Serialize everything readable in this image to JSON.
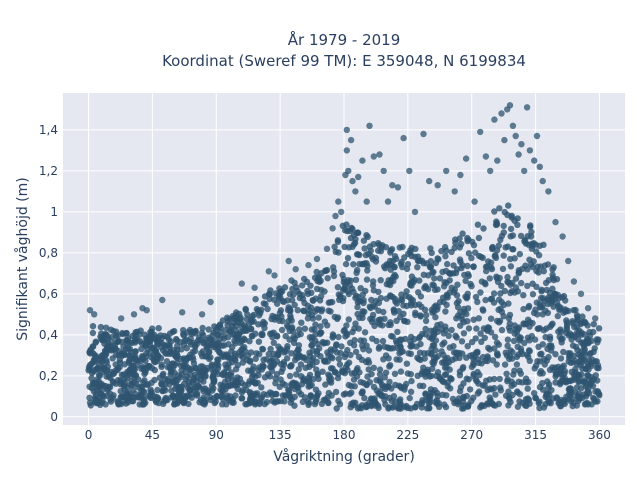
{
  "chart_data": {
    "type": "scatter",
    "title_line1": "År 1979 - 2019",
    "title_line2": "Koordinat (Sweref 99 TM): E 359048, N 6199834",
    "xlabel": "Vågriktning (grader)",
    "ylabel": "Signifikant våghöjd (m)",
    "xlim": [
      -18,
      378
    ],
    "ylim": [
      -0.04,
      1.58
    ],
    "xticks": [
      0,
      45,
      90,
      135,
      180,
      225,
      270,
      315,
      360
    ],
    "xtick_labels": [
      "0",
      "45",
      "90",
      "135",
      "180",
      "225",
      "270",
      "315",
      "360"
    ],
    "yticks": [
      0,
      0.2,
      0.4,
      0.6,
      0.8,
      1.0,
      1.2,
      1.4
    ],
    "ytick_labels": [
      "0",
      "0,2",
      "0,4",
      "0,6",
      "0,8",
      "1",
      "1,2",
      "1,4"
    ],
    "grid": true,
    "marker_color": "#2e5470",
    "plot_bg": "#e5e8f0",
    "envelope": {
      "direction": [
        0,
        10,
        20,
        30,
        45,
        60,
        75,
        90,
        105,
        120,
        135,
        150,
        165,
        175,
        180,
        190,
        200,
        210,
        225,
        240,
        255,
        270,
        285,
        295,
        300,
        310,
        320,
        330,
        340,
        350,
        360
      ],
      "upper_wave_height": [
        0.48,
        0.44,
        0.42,
        0.42,
        0.44,
        0.42,
        0.43,
        0.45,
        0.52,
        0.6,
        0.65,
        0.68,
        0.72,
        0.9,
        0.95,
        0.9,
        0.88,
        0.85,
        0.83,
        0.82,
        0.86,
        0.92,
        1.0,
        1.05,
        1.0,
        0.95,
        0.85,
        0.7,
        0.55,
        0.48,
        0.46
      ],
      "lower_wave_height": [
        0.05,
        0.06,
        0.06,
        0.06,
        0.06,
        0.06,
        0.06,
        0.06,
        0.06,
        0.06,
        0.06,
        0.05,
        0.05,
        0.04,
        0.04,
        0.04,
        0.04,
        0.04,
        0.04,
        0.04,
        0.04,
        0.04,
        0.04,
        0.04,
        0.04,
        0.04,
        0.04,
        0.05,
        0.05,
        0.06,
        0.06
      ]
    },
    "outliers": [
      {
        "x": 1,
        "y": 0.52
      },
      {
        "x": 4,
        "y": 0.5
      },
      {
        "x": 23,
        "y": 0.48
      },
      {
        "x": 32,
        "y": 0.5
      },
      {
        "x": 38,
        "y": 0.53
      },
      {
        "x": 41,
        "y": 0.52
      },
      {
        "x": 52,
        "y": 0.57
      },
      {
        "x": 66,
        "y": 0.51
      },
      {
        "x": 80,
        "y": 0.5
      },
      {
        "x": 86,
        "y": 0.56
      },
      {
        "x": 108,
        "y": 0.65
      },
      {
        "x": 117,
        "y": 0.63
      },
      {
        "x": 127,
        "y": 0.71
      },
      {
        "x": 131,
        "y": 0.69
      },
      {
        "x": 141,
        "y": 0.76
      },
      {
        "x": 146,
        "y": 0.72
      },
      {
        "x": 155,
        "y": 0.74
      },
      {
        "x": 161,
        "y": 0.77
      },
      {
        "x": 168,
        "y": 0.82
      },
      {
        "x": 172,
        "y": 0.92
      },
      {
        "x": 174,
        "y": 0.98
      },
      {
        "x": 176,
        "y": 1.05
      },
      {
        "x": 178,
        "y": 1.0
      },
      {
        "x": 181,
        "y": 1.18
      },
      {
        "x": 182,
        "y": 1.3
      },
      {
        "x": 182,
        "y": 1.4
      },
      {
        "x": 183,
        "y": 1.2
      },
      {
        "x": 185,
        "y": 1.35
      },
      {
        "x": 186,
        "y": 1.15
      },
      {
        "x": 188,
        "y": 1.1
      },
      {
        "x": 190,
        "y": 1.17
      },
      {
        "x": 193,
        "y": 1.25
      },
      {
        "x": 196,
        "y": 1.05
      },
      {
        "x": 198,
        "y": 1.42
      },
      {
        "x": 201,
        "y": 1.27
      },
      {
        "x": 205,
        "y": 1.28
      },
      {
        "x": 208,
        "y": 1.2
      },
      {
        "x": 211,
        "y": 1.05
      },
      {
        "x": 214,
        "y": 1.13
      },
      {
        "x": 218,
        "y": 1.12
      },
      {
        "x": 222,
        "y": 1.36
      },
      {
        "x": 226,
        "y": 1.2
      },
      {
        "x": 230,
        "y": 1.0
      },
      {
        "x": 236,
        "y": 1.38
      },
      {
        "x": 240,
        "y": 1.15
      },
      {
        "x": 246,
        "y": 1.13
      },
      {
        "x": 252,
        "y": 1.2
      },
      {
        "x": 258,
        "y": 1.1
      },
      {
        "x": 262,
        "y": 1.18
      },
      {
        "x": 266,
        "y": 1.26
      },
      {
        "x": 272,
        "y": 1.05
      },
      {
        "x": 276,
        "y": 1.39
      },
      {
        "x": 280,
        "y": 1.27
      },
      {
        "x": 283,
        "y": 1.2
      },
      {
        "x": 286,
        "y": 1.45
      },
      {
        "x": 288,
        "y": 1.25
      },
      {
        "x": 291,
        "y": 1.48
      },
      {
        "x": 293,
        "y": 1.35
      },
      {
        "x": 295,
        "y": 1.5
      },
      {
        "x": 297,
        "y": 1.52
      },
      {
        "x": 299,
        "y": 1.42
      },
      {
        "x": 301,
        "y": 1.37
      },
      {
        "x": 303,
        "y": 1.28
      },
      {
        "x": 305,
        "y": 1.33
      },
      {
        "x": 307,
        "y": 1.2
      },
      {
        "x": 309,
        "y": 1.51
      },
      {
        "x": 311,
        "y": 1.3
      },
      {
        "x": 314,
        "y": 1.25
      },
      {
        "x": 316,
        "y": 1.37
      },
      {
        "x": 318,
        "y": 1.22
      },
      {
        "x": 320,
        "y": 1.15
      },
      {
        "x": 324,
        "y": 1.1
      },
      {
        "x": 329,
        "y": 0.95
      },
      {
        "x": 334,
        "y": 0.88
      },
      {
        "x": 338,
        "y": 0.76
      },
      {
        "x": 342,
        "y": 0.66
      },
      {
        "x": 347,
        "y": 0.6
      },
      {
        "x": 352,
        "y": 0.53
      },
      {
        "x": 357,
        "y": 0.48
      }
    ]
  }
}
